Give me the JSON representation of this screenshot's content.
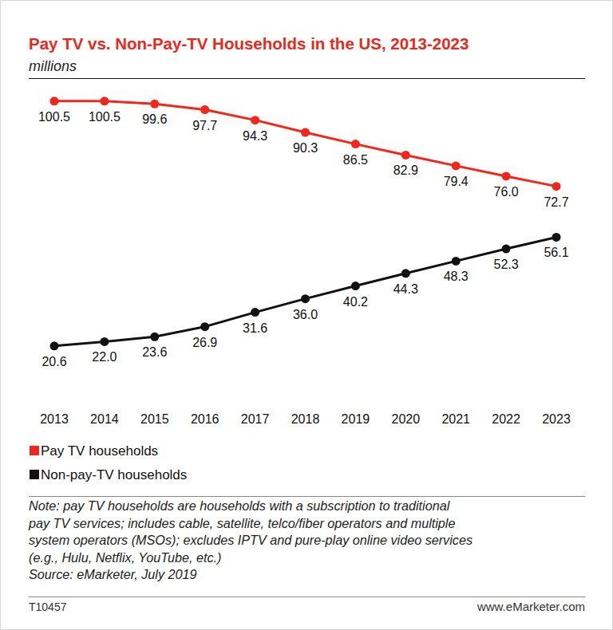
{
  "chart_data": {
    "type": "line",
    "title": "Pay TV vs. Non-Pay-TV Households in the US, 2013-2023",
    "subtitle": "millions",
    "categories": [
      "2013",
      "2014",
      "2015",
      "2016",
      "2017",
      "2018",
      "2019",
      "2020",
      "2021",
      "2022",
      "2023"
    ],
    "series": [
      {
        "name": "Pay TV households",
        "color": "#f4261c",
        "values": [
          100.5,
          100.5,
          99.6,
          97.7,
          94.3,
          90.3,
          86.5,
          82.9,
          79.4,
          76.0,
          72.7
        ],
        "value_labels": [
          "100.5",
          "100.5",
          "99.6",
          "97.7",
          "94.3",
          "90.3",
          "86.5",
          "82.9",
          "79.4",
          "76.0",
          "72.7"
        ]
      },
      {
        "name": "Non-pay-TV households",
        "color": "#111111",
        "values": [
          20.6,
          22.0,
          23.6,
          26.9,
          31.6,
          36.0,
          40.2,
          44.3,
          48.3,
          52.3,
          56.1
        ],
        "value_labels": [
          "20.6",
          "22.0",
          "23.6",
          "26.9",
          "31.6",
          "36.0",
          "40.2",
          "44.3",
          "48.3",
          "52.3",
          "56.1"
        ]
      }
    ],
    "ylim": [
      0,
      108
    ],
    "tick_labels": "x",
    "data_labels": true,
    "marker": "circle",
    "legend": "bottom-left",
    "note": [
      "Note: pay TV households are households with a subscription to traditional",
      "pay TV services; includes cable, satellite, telco/fiber operators and multiple",
      "system operators (MSOs); excludes IPTV and pure-play online video services",
      "(e.g., Hulu, Netflix, YouTube, etc.)"
    ],
    "source": "Source: eMarketer, July 2019",
    "chart_id": "T10457",
    "website": "www.eMarketer.com"
  }
}
